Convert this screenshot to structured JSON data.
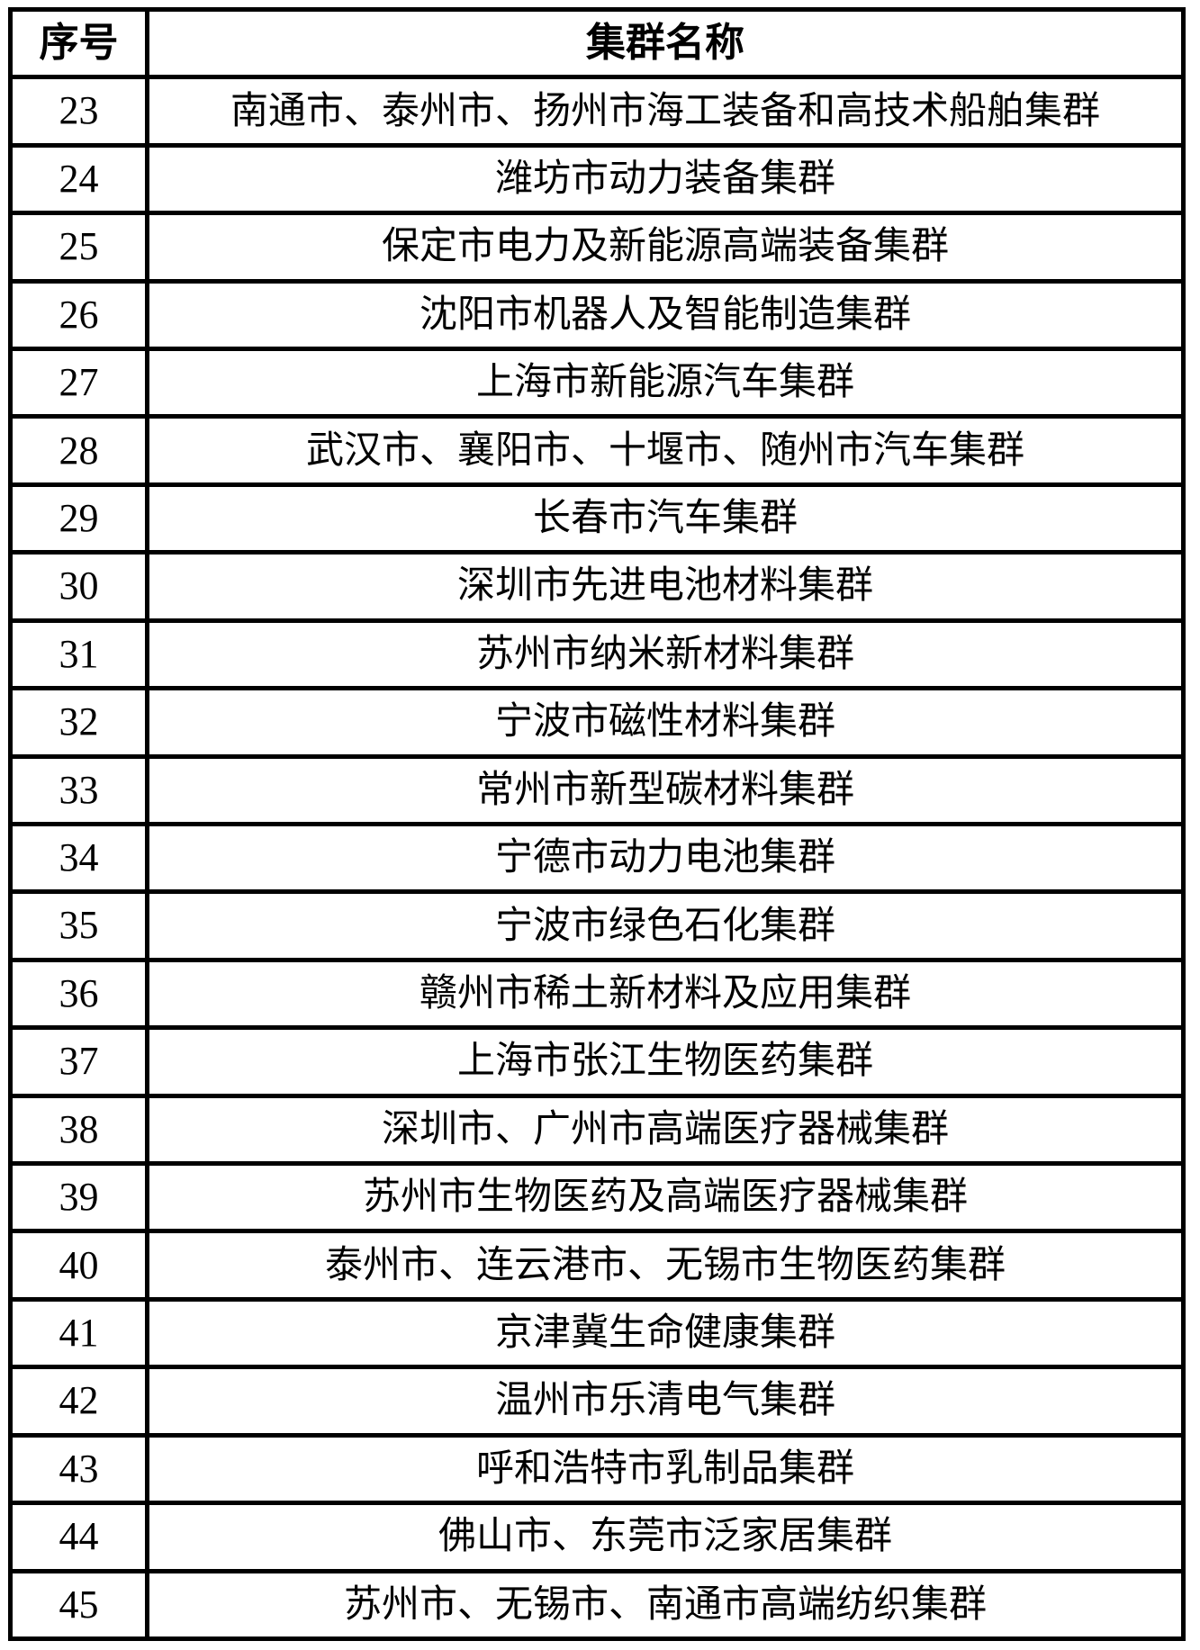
{
  "colors": {
    "border": "#000000",
    "text": "#000000",
    "background": "#ffffff"
  },
  "table": {
    "header": {
      "col1": "序号",
      "col2": "集群名称"
    },
    "rows": [
      {
        "no": "23",
        "name": "南通市、泰州市、扬州市海工装备和高技术船舶集群"
      },
      {
        "no": "24",
        "name": "潍坊市动力装备集群"
      },
      {
        "no": "25",
        "name": "保定市电力及新能源高端装备集群"
      },
      {
        "no": "26",
        "name": "沈阳市机器人及智能制造集群"
      },
      {
        "no": "27",
        "name": "上海市新能源汽车集群"
      },
      {
        "no": "28",
        "name": "武汉市、襄阳市、十堰市、随州市汽车集群"
      },
      {
        "no": "29",
        "name": "长春市汽车集群"
      },
      {
        "no": "30",
        "name": "深圳市先进电池材料集群"
      },
      {
        "no": "31",
        "name": "苏州市纳米新材料集群"
      },
      {
        "no": "32",
        "name": "宁波市磁性材料集群"
      },
      {
        "no": "33",
        "name": "常州市新型碳材料集群"
      },
      {
        "no": "34",
        "name": "宁德市动力电池集群"
      },
      {
        "no": "35",
        "name": "宁波市绿色石化集群"
      },
      {
        "no": "36",
        "name": "赣州市稀土新材料及应用集群"
      },
      {
        "no": "37",
        "name": "上海市张江生物医药集群"
      },
      {
        "no": "38",
        "name": "深圳市、广州市高端医疗器械集群"
      },
      {
        "no": "39",
        "name": "苏州市生物医药及高端医疗器械集群"
      },
      {
        "no": "40",
        "name": "泰州市、连云港市、无锡市生物医药集群"
      },
      {
        "no": "41",
        "name": "京津冀生命健康集群"
      },
      {
        "no": "42",
        "name": "温州市乐清电气集群"
      },
      {
        "no": "43",
        "name": "呼和浩特市乳制品集群"
      },
      {
        "no": "44",
        "name": "佛山市、东莞市泛家居集群"
      },
      {
        "no": "45",
        "name": "苏州市、无锡市、南通市高端纺织集群"
      }
    ]
  }
}
